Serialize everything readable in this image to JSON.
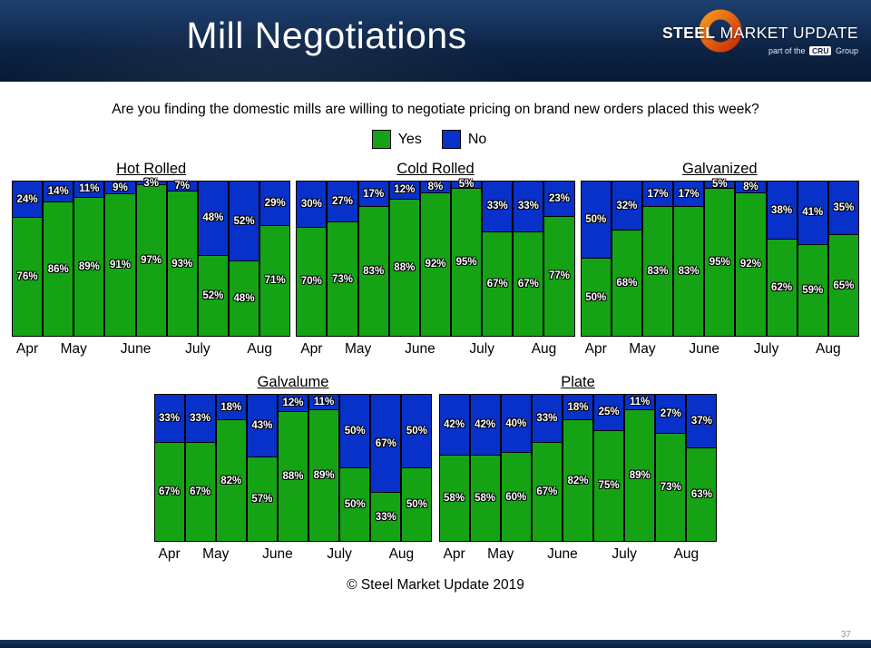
{
  "header": {
    "title": "Mill Negotiations",
    "logo": {
      "name_bold": "STEEL",
      "name_rest": " MARKET UPDATE",
      "sub_prefix": "part of the",
      "cru": "CRU",
      "sub_suffix": "Group"
    }
  },
  "question": "Are you finding the domestic mills are willing to negotiate pricing on brand new orders placed this week?",
  "legend": [
    {
      "label": "Yes",
      "color": "#15A315"
    },
    {
      "label": "No",
      "color": "#0731C9"
    }
  ],
  "colors": {
    "yes": "#15A315",
    "no": "#0731C9"
  },
  "footer": "© Steel Market Update 2019",
  "page_number": "37",
  "chart_data": [
    {
      "type": "bar",
      "stacked": true,
      "stack_total": 100,
      "title": "Hot Rolled",
      "months": [
        "Apr",
        "May",
        "June",
        "July",
        "Aug"
      ],
      "series": [
        {
          "name": "Yes",
          "values": [
            76,
            86,
            89,
            91,
            97,
            93,
            52,
            48,
            71
          ]
        },
        {
          "name": "No",
          "values": [
            24,
            14,
            11,
            9,
            3,
            7,
            48,
            52,
            29
          ]
        }
      ]
    },
    {
      "type": "bar",
      "stacked": true,
      "stack_total": 100,
      "title": "Cold Rolled",
      "months": [
        "Apr",
        "May",
        "June",
        "July",
        "Aug"
      ],
      "series": [
        {
          "name": "Yes",
          "values": [
            70,
            73,
            83,
            88,
            92,
            95,
            67,
            67,
            77
          ]
        },
        {
          "name": "No",
          "values": [
            30,
            27,
            17,
            12,
            8,
            5,
            33,
            33,
            23
          ]
        }
      ]
    },
    {
      "type": "bar",
      "stacked": true,
      "stack_total": 100,
      "title": "Galvanized",
      "months": [
        "Apr",
        "May",
        "June",
        "July",
        "Aug"
      ],
      "series": [
        {
          "name": "Yes",
          "values": [
            50,
            68,
            83,
            83,
            95,
            92,
            62,
            59,
            65
          ]
        },
        {
          "name": "No",
          "values": [
            50,
            32,
            17,
            17,
            5,
            8,
            38,
            41,
            35
          ]
        }
      ]
    },
    {
      "type": "bar",
      "stacked": true,
      "stack_total": 100,
      "title": "Galvalume",
      "months": [
        "Apr",
        "May",
        "June",
        "July",
        "Aug"
      ],
      "series": [
        {
          "name": "Yes",
          "values": [
            67,
            67,
            82,
            57,
            88,
            89,
            50,
            33,
            50
          ]
        },
        {
          "name": "No",
          "values": [
            33,
            33,
            18,
            43,
            12,
            11,
            50,
            67,
            50
          ]
        }
      ]
    },
    {
      "type": "bar",
      "stacked": true,
      "stack_total": 100,
      "title": "Plate",
      "months": [
        "Apr",
        "May",
        "June",
        "July",
        "Aug"
      ],
      "series": [
        {
          "name": "Yes",
          "values": [
            58,
            58,
            60,
            67,
            82,
            75,
            89,
            73,
            63
          ]
        },
        {
          "name": "No",
          "values": [
            42,
            42,
            40,
            33,
            18,
            25,
            11,
            27,
            37
          ]
        }
      ]
    }
  ]
}
